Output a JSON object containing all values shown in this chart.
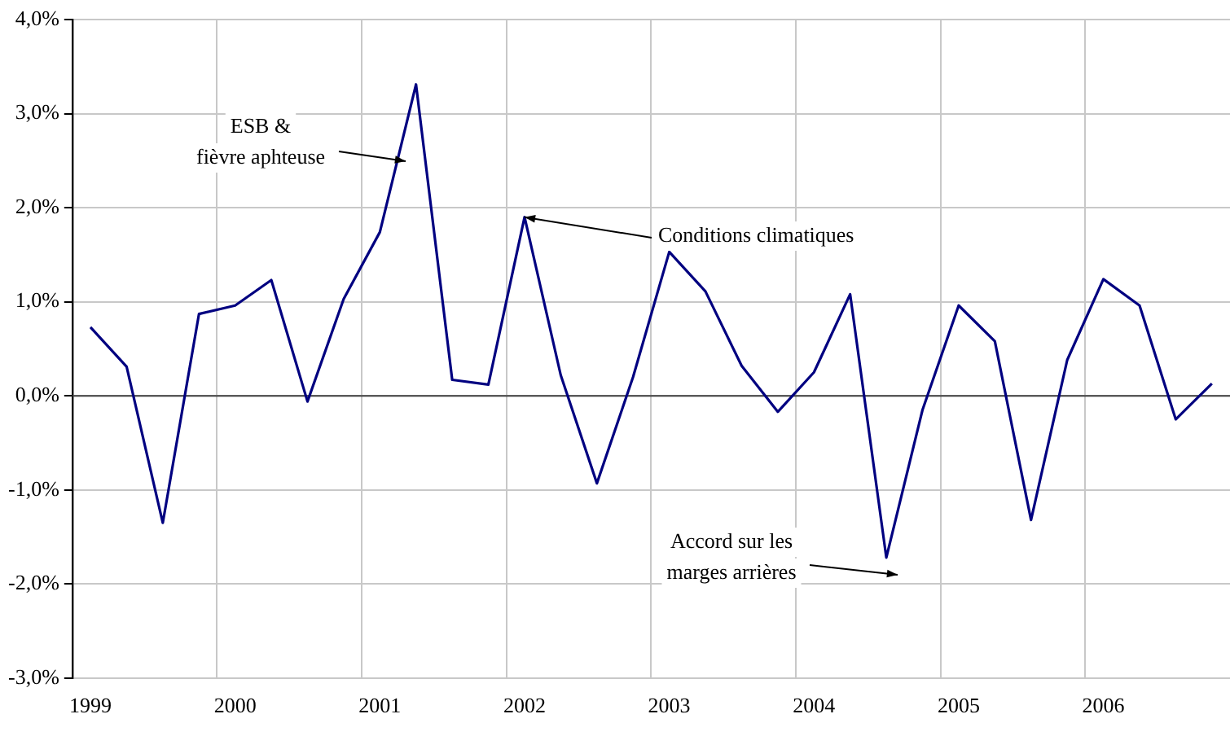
{
  "chart_data": {
    "type": "line",
    "categories": [
      "1999",
      null,
      null,
      null,
      "2000",
      null,
      null,
      null,
      "2001",
      null,
      null,
      null,
      "2002",
      null,
      null,
      null,
      "2003",
      null,
      null,
      null,
      "2004",
      null,
      null,
      null,
      "2005",
      null,
      null,
      null,
      "2006",
      null,
      null,
      null
    ],
    "series": [
      {
        "color": "#000080",
        "values": [
          0.73,
          0.31,
          -1.35,
          0.87,
          0.96,
          1.23,
          -0.06,
          1.03,
          1.74,
          3.31,
          0.17,
          0.12,
          1.9,
          0.22,
          -0.93,
          0.2,
          1.53,
          1.11,
          0.32,
          -0.17,
          0.25,
          1.08,
          -1.72,
          -0.15,
          0.96,
          0.58,
          -1.32,
          0.38,
          1.24,
          0.96,
          -0.25,
          0.13
        ]
      }
    ],
    "ylim": [
      -3,
      4
    ],
    "yticks": [
      {
        "value": -3,
        "label": "-3,0%"
      },
      {
        "value": -2,
        "label": "-2,0%"
      },
      {
        "value": -1,
        "label": "-1,0%"
      },
      {
        "value": 0,
        "label": "0,0%"
      },
      {
        "value": 1,
        "label": "1,0%"
      },
      {
        "value": 2,
        "label": "2,0%"
      },
      {
        "value": 3,
        "label": "3,0%"
      },
      {
        "value": 4,
        "label": "4,0%"
      }
    ],
    "grid": true,
    "legend": false,
    "marker": "none",
    "line_style": "solid",
    "annotations": [
      "ESB &\nfièvre aphteuse",
      {
        "text": "Conditions climatiques",
        "x": "2002",
        "y": 1.9
      },
      "Accord sur les\nmarges arrières"
    ]
  }
}
